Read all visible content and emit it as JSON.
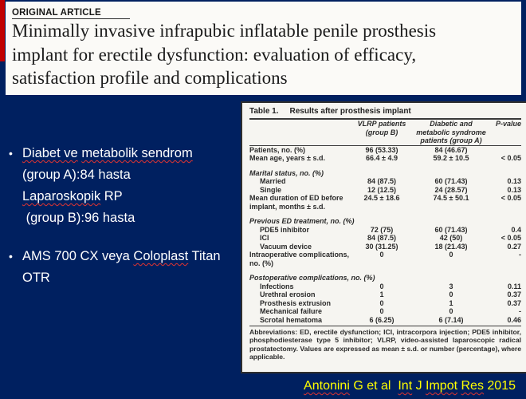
{
  "colors": {
    "background": "#002060",
    "accent_bar": "#C00000",
    "citation_text": "#FFFF00"
  },
  "slide": {
    "kicker": "ORIGINAL ARTICLE",
    "title_lines": [
      "Minimally invasive infrapubic inflatable penile prosthesis",
      "implant for erectile dysfunction: evaluation of efficacy,",
      "satisfaction profile and complications"
    ],
    "bullets": [
      {
        "lines": [
          [
            {
              "text": "Diabet ve",
              "squiggle": true
            },
            {
              "text": " "
            },
            {
              "text": "metabolik sendrom",
              "squiggle": true
            }
          ],
          [
            {
              "text": "(group A):84 hasta"
            }
          ],
          [
            {
              "text": "Laparoskopik",
              "squiggle": true
            },
            {
              "text": " RP"
            }
          ],
          [
            {
              "text": " (group B):96 hasta"
            }
          ]
        ]
      },
      {
        "lines": [
          [
            {
              "text": "AMS 700 CX veya "
            },
            {
              "text": "Coloplast",
              "squiggle": true
            },
            {
              "text": " Titan"
            }
          ],
          [
            {
              "text": "OTR"
            }
          ]
        ]
      }
    ],
    "citation": [
      {
        "text": "Antonini",
        "squiggle": true
      },
      {
        "text": " G et al  "
      },
      {
        "text": "Int",
        "squiggle": true
      },
      {
        "text": " J "
      },
      {
        "text": "Impot",
        "squiggle": true
      },
      {
        "text": " "
      },
      {
        "text": "Res",
        "squiggle": true
      },
      {
        "text": " 2015"
      }
    ]
  },
  "table": {
    "caption_label": "Table 1.",
    "caption_text": "Results after prosthesis implant",
    "header": {
      "group_b": "VLRP patients (group B)",
      "group_a": "Diabetic and metabolic syndrome patients (group A)",
      "p": "P-value"
    },
    "rows": [
      {
        "style": "row",
        "label": "Patients, no. (%)",
        "groupB": "96 (53.33)",
        "groupA": "84 (46.67)",
        "p": ""
      },
      {
        "style": "row",
        "label": "Mean age, years ± s.d.",
        "groupB": "66.4 ± 4.9",
        "groupA": "59.2 ± 10.5",
        "p": "< 0.05"
      },
      {
        "style": "spacer"
      },
      {
        "style": "section",
        "label": "Marital status, no. (%)"
      },
      {
        "style": "indent",
        "label": "Married",
        "groupB": "84 (87.5)",
        "groupA": "60 (71.43)",
        "p": "0.13"
      },
      {
        "style": "indent",
        "label": "Single",
        "groupB": "12 (12.5)",
        "groupA": "24 (28.57)",
        "p": "0.13"
      },
      {
        "style": "row",
        "label": "Mean duration of ED before implant, months ± s.d.",
        "groupB": "24.5 ± 18.6",
        "groupA": "74.5 ± 50.1",
        "p": "< 0.05"
      },
      {
        "style": "spacer"
      },
      {
        "style": "section",
        "label": "Previous ED treatment, no. (%)"
      },
      {
        "style": "indent",
        "label": "PDE5 inhibitor",
        "groupB": "72 (75)",
        "groupA": "60 (71.43)",
        "p": "0.4"
      },
      {
        "style": "indent",
        "label": "ICI",
        "groupB": "84 (87.5)",
        "groupA": "42 (50)",
        "p": "< 0.05"
      },
      {
        "style": "indent",
        "label": "Vacuum device",
        "groupB": "30 (31.25)",
        "groupA": "18 (21.43)",
        "p": "0.27"
      },
      {
        "style": "row",
        "label": "Intraoperative complications, no. (%)",
        "groupB": "0",
        "groupA": "0",
        "p": "-"
      },
      {
        "style": "spacer"
      },
      {
        "style": "section",
        "label": "Postoperative complications, no. (%)"
      },
      {
        "style": "indent",
        "label": "Infections",
        "groupB": "0",
        "groupA": "3",
        "p": "0.11"
      },
      {
        "style": "indent",
        "label": "Urethral erosion",
        "groupB": "1",
        "groupA": "0",
        "p": "0.37"
      },
      {
        "style": "indent",
        "label": "Prosthesis extrusion",
        "groupB": "0",
        "groupA": "1",
        "p": "0.37"
      },
      {
        "style": "indent",
        "label": "Mechanical failure",
        "groupB": "0",
        "groupA": "0",
        "p": "-"
      },
      {
        "style": "indent",
        "label": "Scrotal hematoma",
        "groupB": "6 (6.25)",
        "groupA": "6 (7.14)",
        "p": "0.46"
      }
    ],
    "footnote": "Abbreviations: ED, erectile dysfunction; ICI, intracorpora injection; PDE5 inhibitor, phosphodiesterase type 5 inhibitor; VLRP, video-assisted laparoscopic radical prostatectomy. Values are expressed as mean ± s.d. or number (percentage), where applicable."
  }
}
